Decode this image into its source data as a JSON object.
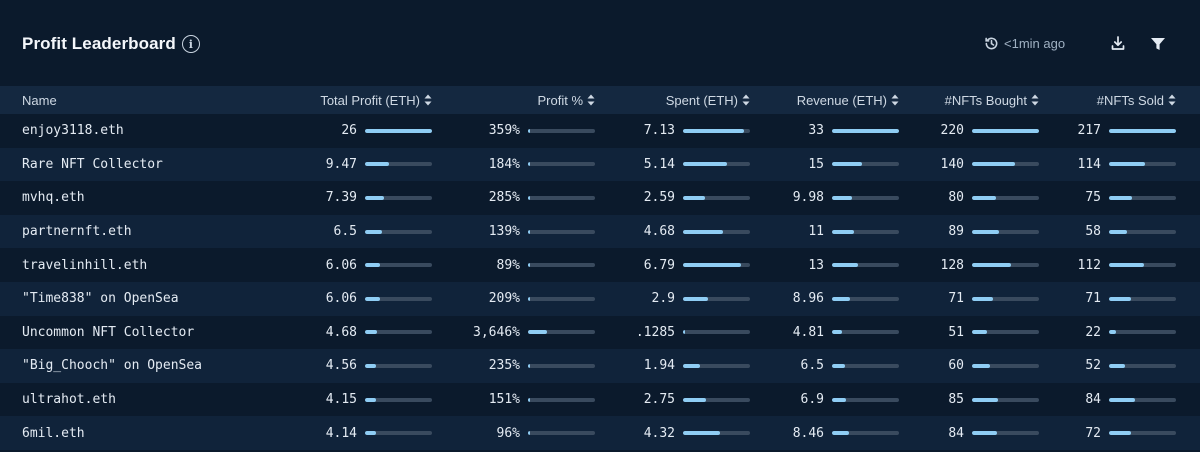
{
  "header": {
    "title": "Profit Leaderboard",
    "updated": "<1min ago",
    "icons": [
      "info-icon",
      "history-clock-icon",
      "download-icon",
      "filter-icon"
    ]
  },
  "columns": [
    "Name",
    "Total Profit (ETH)",
    "Profit %",
    "Spent (ETH)",
    "Revenue (ETH)",
    "#NFTs Bought",
    "#NFTs Sold"
  ],
  "colors": {
    "background": "#0b1a2c",
    "header_row": "#142840",
    "alt_row": "#10233a",
    "bar_fill": "#8fcdf4",
    "bar_track": "#394a5e"
  },
  "rows": [
    {
      "name": "enjoy3118.eth",
      "profit": "26",
      "profit_pct": "359%",
      "spent": "7.13",
      "revenue": "33",
      "bought": "220",
      "sold": "217",
      "bars": {
        "profit": 1.0,
        "profit_pct": 0.02,
        "spent": 0.91,
        "revenue": 1.0,
        "bought": 1.0,
        "sold": 1.0
      }
    },
    {
      "name": "Rare NFT Collector",
      "profit": "9.47",
      "profit_pct": "184%",
      "spent": "5.14",
      "revenue": "15",
      "bought": "140",
      "sold": "114",
      "bars": {
        "profit": 0.36,
        "profit_pct": 0.01,
        "spent": 0.66,
        "revenue": 0.45,
        "bought": 0.64,
        "sold": 0.53
      }
    },
    {
      "name": "mvhq.eth",
      "profit": "7.39",
      "profit_pct": "285%",
      "spent": "2.59",
      "revenue": "9.98",
      "bought": "80",
      "sold": "75",
      "bars": {
        "profit": 0.28,
        "profit_pct": 0.02,
        "spent": 0.33,
        "revenue": 0.3,
        "bought": 0.36,
        "sold": 0.35
      }
    },
    {
      "name": "partnernft.eth",
      "profit": "6.5",
      "profit_pct": "139%",
      "spent": "4.68",
      "revenue": "11",
      "bought": "89",
      "sold": "58",
      "bars": {
        "profit": 0.25,
        "profit_pct": 0.01,
        "spent": 0.6,
        "revenue": 0.33,
        "bought": 0.4,
        "sold": 0.27
      }
    },
    {
      "name": "travelinhill.eth",
      "profit": "6.06",
      "profit_pct": "89%",
      "spent": "6.79",
      "revenue": "13",
      "bought": "128",
      "sold": "112",
      "bars": {
        "profit": 0.23,
        "profit_pct": 0.005,
        "spent": 0.87,
        "revenue": 0.39,
        "bought": 0.58,
        "sold": 0.52
      }
    },
    {
      "name": "\"Time838\" on OpenSea",
      "profit": "6.06",
      "profit_pct": "209%",
      "spent": "2.9",
      "revenue": "8.96",
      "bought": "71",
      "sold": "71",
      "bars": {
        "profit": 0.23,
        "profit_pct": 0.01,
        "spent": 0.37,
        "revenue": 0.27,
        "bought": 0.32,
        "sold": 0.33
      }
    },
    {
      "name": "Uncommon NFT Collector",
      "profit": "4.68",
      "profit_pct": "3,646%",
      "spent": ".1285",
      "revenue": "4.81",
      "bought": "51",
      "sold": "22",
      "bars": {
        "profit": 0.18,
        "profit_pct": 0.28,
        "spent": 0.02,
        "revenue": 0.15,
        "bought": 0.23,
        "sold": 0.1
      }
    },
    {
      "name": "\"Big_Chooch\" on OpenSea",
      "profit": "4.56",
      "profit_pct": "235%",
      "spent": "1.94",
      "revenue": "6.5",
      "bought": "60",
      "sold": "52",
      "bars": {
        "profit": 0.17,
        "profit_pct": 0.01,
        "spent": 0.25,
        "revenue": 0.2,
        "bought": 0.27,
        "sold": 0.24
      }
    },
    {
      "name": "ultrahot.eth",
      "profit": "4.15",
      "profit_pct": "151%",
      "spent": "2.75",
      "revenue": "6.9",
      "bought": "85",
      "sold": "84",
      "bars": {
        "profit": 0.16,
        "profit_pct": 0.01,
        "spent": 0.35,
        "revenue": 0.21,
        "bought": 0.39,
        "sold": 0.39
      }
    },
    {
      "name": "6mil.eth",
      "profit": "4.14",
      "profit_pct": "96%",
      "spent": "4.32",
      "revenue": "8.46",
      "bought": "84",
      "sold": "72",
      "bars": {
        "profit": 0.16,
        "profit_pct": 0.005,
        "spent": 0.55,
        "revenue": 0.26,
        "bought": 0.38,
        "sold": 0.33
      }
    }
  ]
}
